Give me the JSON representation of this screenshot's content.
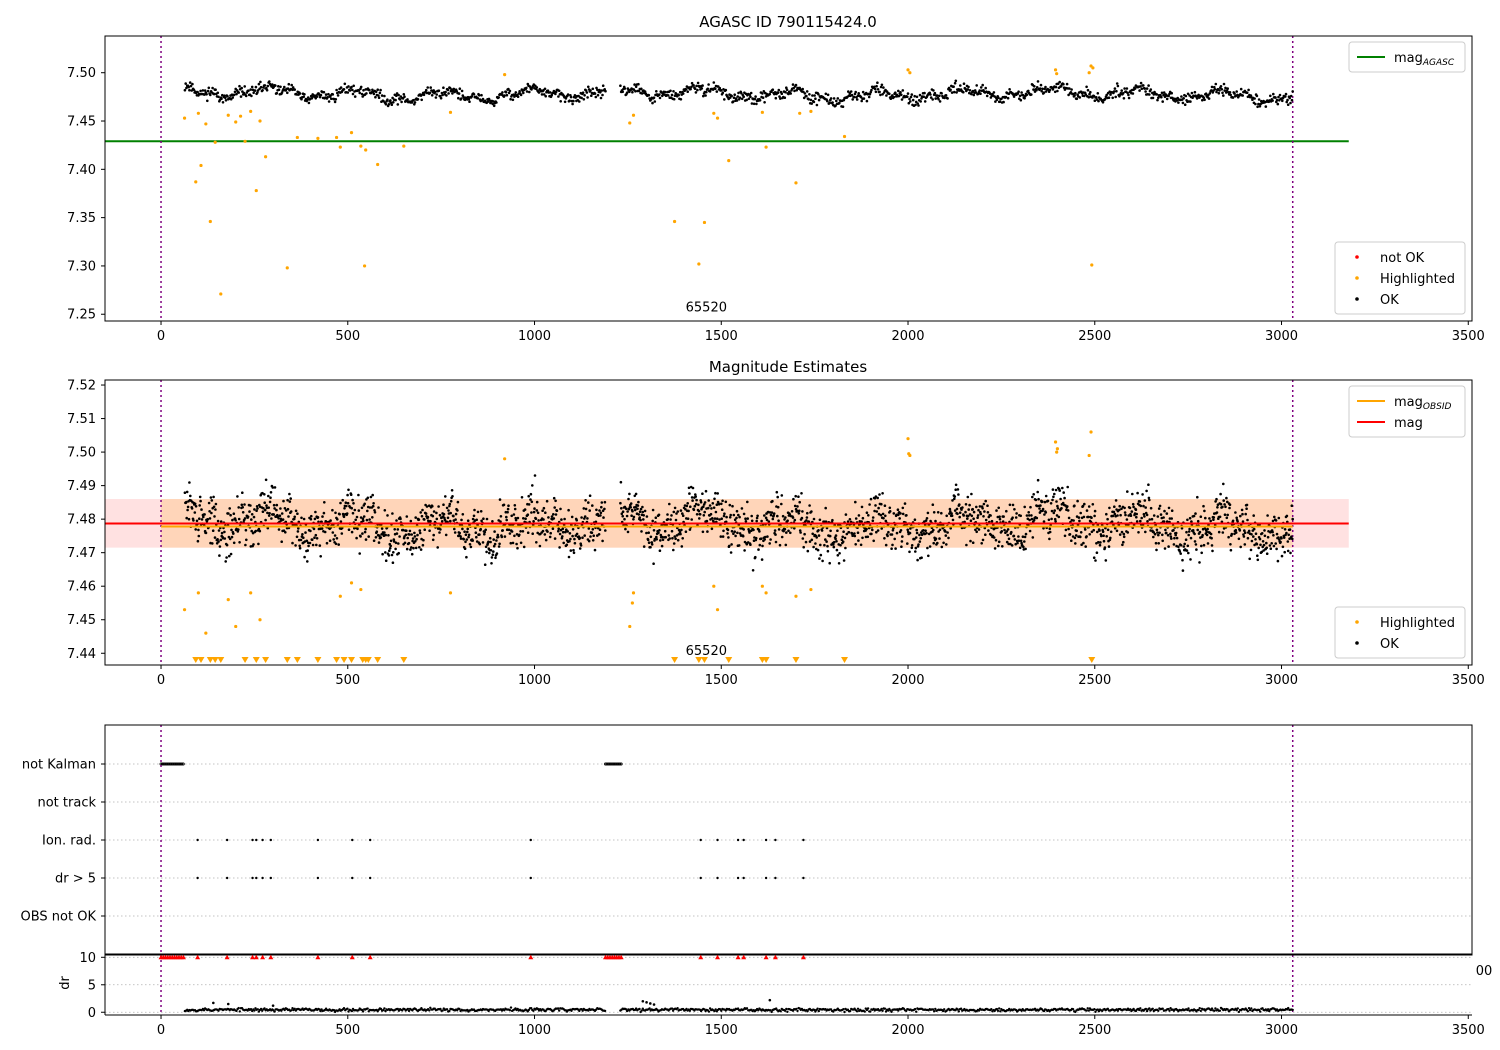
{
  "figure": {
    "title": "AGASC ID 790115424.0"
  },
  "colors": {
    "ok": "#000000",
    "highlighted": "#ffa500",
    "not_ok": "#ff0000",
    "agasc_line": "#008000",
    "obsid_line": "#ffa500",
    "mag_line": "#ff0000",
    "obs_band": "#ffcc99",
    "mag_band": "#ffaaaa",
    "obs_boundary": "#800080",
    "gridline": "#b0b0b0"
  },
  "chart_data": [
    {
      "id": "top",
      "type": "scatter",
      "title": "AGASC ID 790115424.0",
      "xlim": [
        -150,
        3510
      ],
      "ylim": [
        7.243,
        7.538
      ],
      "xticks": [
        0,
        500,
        1000,
        1500,
        2000,
        2500,
        3000,
        3500
      ],
      "yticks": [
        7.25,
        7.3,
        7.35,
        7.4,
        7.45,
        7.5
      ],
      "ytick_labels": [
        "7.25",
        "7.30",
        "7.35",
        "7.40",
        "7.45",
        "7.50"
      ],
      "obsid_label": "65520",
      "obsid_label_pos": [
        1460,
        7.253
      ],
      "obs_boundaries": [
        0,
        3030
      ],
      "hlines": [
        {
          "name": "mag_AGASC",
          "y": 7.429,
          "x": [
            -150,
            3180
          ],
          "color": "#008000"
        }
      ],
      "ok_series": {
        "name": "OK",
        "segments": [
          [
            64,
            1190
          ],
          [
            1230,
            3030
          ]
        ],
        "baseline": 7.478,
        "wiggle": 0.009,
        "noise": 0.005,
        "step": 2.0
      },
      "highlighted_points": [
        [
          63,
          7.453
        ],
        [
          93,
          7.387
        ],
        [
          100,
          7.458
        ],
        [
          107,
          7.404
        ],
        [
          120,
          7.447
        ],
        [
          132,
          7.346
        ],
        [
          145,
          7.428
        ],
        [
          160,
          7.271
        ],
        [
          180,
          7.456
        ],
        [
          200,
          7.449
        ],
        [
          213,
          7.455
        ],
        [
          225,
          7.429
        ],
        [
          240,
          7.46
        ],
        [
          255,
          7.378
        ],
        [
          265,
          7.45
        ],
        [
          280,
          7.413
        ],
        [
          338,
          7.298
        ],
        [
          365,
          7.433
        ],
        [
          420,
          7.432
        ],
        [
          470,
          7.433
        ],
        [
          480,
          7.423
        ],
        [
          510,
          7.438
        ],
        [
          535,
          7.424
        ],
        [
          545,
          7.3
        ],
        [
          548,
          7.42
        ],
        [
          580,
          7.405
        ],
        [
          650,
          7.424
        ],
        [
          775,
          7.459
        ],
        [
          920,
          7.498
        ],
        [
          1255,
          7.448
        ],
        [
          1265,
          7.456
        ],
        [
          1375,
          7.346
        ],
        [
          1440,
          7.302
        ],
        [
          1455,
          7.345
        ],
        [
          1480,
          7.458
        ],
        [
          1490,
          7.453
        ],
        [
          1520,
          7.409
        ],
        [
          1610,
          7.459
        ],
        [
          1620,
          7.423
        ],
        [
          1700,
          7.386
        ],
        [
          1710,
          7.458
        ],
        [
          1740,
          7.46
        ],
        [
          1830,
          7.434
        ],
        [
          2000,
          7.503
        ],
        [
          2005,
          7.5
        ],
        [
          2395,
          7.503
        ],
        [
          2398,
          7.499
        ],
        [
          2485,
          7.5
        ],
        [
          2490,
          7.507
        ],
        [
          2492,
          7.301
        ],
        [
          2495,
          7.505
        ]
      ],
      "legends": [
        {
          "position": "top-right",
          "entries": [
            {
              "label": "mag",
              "sub": "AGASC",
              "kind": "line",
              "color": "#008000"
            }
          ]
        },
        {
          "position": "bottom-right",
          "entries": [
            {
              "label": "not OK",
              "kind": "dot",
              "color": "#ff0000"
            },
            {
              "label": "Highlighted",
              "kind": "dot",
              "color": "#ffa500"
            },
            {
              "label": "OK",
              "kind": "dot",
              "color": "#000000"
            }
          ]
        }
      ]
    },
    {
      "id": "middle",
      "type": "scatter",
      "title": "Magnitude Estimates",
      "xlim": [
        -150,
        3510
      ],
      "ylim": [
        7.4365,
        7.5215
      ],
      "xticks": [
        0,
        500,
        1000,
        1500,
        2000,
        2500,
        3000,
        3500
      ],
      "yticks": [
        7.44,
        7.45,
        7.46,
        7.47,
        7.48,
        7.49,
        7.5,
        7.51,
        7.52
      ],
      "ytick_labels": [
        "7.44",
        "7.45",
        "7.46",
        "7.47",
        "7.48",
        "7.49",
        "7.50",
        "7.51",
        "7.52"
      ],
      "obsid_label": "65520",
      "obsid_label_pos": [
        1460,
        7.4395
      ],
      "obs_boundaries": [
        0,
        3030
      ],
      "bands": [
        {
          "name": "mag range",
          "y": [
            7.4715,
            7.486
          ],
          "x": [
            -150,
            3180
          ],
          "color": "#ffaaaa",
          "opacity": 0.35
        },
        {
          "name": "mag_OBSID range",
          "y": [
            7.4715,
            7.486
          ],
          "x": [
            0,
            3030
          ],
          "color": "#ffcc99",
          "opacity": 0.55
        }
      ],
      "hlines": [
        {
          "name": "mag_OBSID",
          "y": 7.4778,
          "x": [
            0,
            3030
          ],
          "color": "#ffa500"
        },
        {
          "name": "mag",
          "y": 7.4787,
          "x": [
            -150,
            3180
          ],
          "color": "#ff0000"
        }
      ],
      "ok_series": {
        "name": "OK",
        "segments": [
          [
            64,
            1190
          ],
          [
            1230,
            3030
          ]
        ],
        "baseline": 7.4785,
        "wiggle": 0.006,
        "noise": 0.0065,
        "step": 1.2
      },
      "highlighted_points": [
        [
          63,
          7.453
        ],
        [
          100,
          7.458
        ],
        [
          120,
          7.446
        ],
        [
          180,
          7.456
        ],
        [
          200,
          7.448
        ],
        [
          240,
          7.458
        ],
        [
          265,
          7.45
        ],
        [
          480,
          7.457
        ],
        [
          510,
          7.461
        ],
        [
          535,
          7.459
        ],
        [
          775,
          7.458
        ],
        [
          920,
          7.498
        ],
        [
          1255,
          7.448
        ],
        [
          1262,
          7.455
        ],
        [
          1265,
          7.458
        ],
        [
          1480,
          7.46
        ],
        [
          1490,
          7.453
        ],
        [
          1610,
          7.46
        ],
        [
          1620,
          7.458
        ],
        [
          1700,
          7.457
        ],
        [
          1740,
          7.459
        ],
        [
          2000,
          7.504
        ],
        [
          2002,
          7.4995
        ],
        [
          2005,
          7.499
        ],
        [
          2395,
          7.503
        ],
        [
          2398,
          7.5
        ],
        [
          2400,
          7.501
        ],
        [
          2485,
          7.499
        ],
        [
          2490,
          7.506
        ]
      ],
      "clipped_markers": [
        93,
        107,
        132,
        145,
        160,
        225,
        255,
        280,
        338,
        365,
        420,
        470,
        490,
        510,
        540,
        548,
        555,
        580,
        650,
        1375,
        1440,
        1455,
        1520,
        1610,
        1620,
        1700,
        1830,
        2492
      ],
      "legends": [
        {
          "position": "top-right",
          "entries": [
            {
              "label": "mag",
              "sub": "OBSID",
              "kind": "line",
              "color": "#ffa500"
            },
            {
              "label": "mag",
              "kind": "line",
              "color": "#ff0000"
            }
          ]
        },
        {
          "position": "bottom-right",
          "entries": [
            {
              "label": "Highlighted",
              "kind": "dot",
              "color": "#ffa500"
            },
            {
              "label": "OK",
              "kind": "dot",
              "color": "#000000"
            }
          ]
        }
      ]
    },
    {
      "id": "flags",
      "type": "scatter",
      "xlim": [
        -150,
        3510
      ],
      "categories": [
        "not Kalman",
        "not track",
        "Ion. rad.",
        "dr > 5",
        "OBS not OK"
      ],
      "obs_boundaries": [
        0,
        3030
      ],
      "flags": {
        "not Kalman": {
          "ranges": [
            [
              0,
              60
            ],
            [
              1190,
              1235
            ]
          ],
          "points": []
        },
        "not track": {
          "ranges": [],
          "points": []
        },
        "Ion. rad.": {
          "ranges": [],
          "points": [
            98,
            177,
            245,
            255,
            272,
            294,
            420,
            512,
            560,
            990,
            1445,
            1490,
            1545,
            1560,
            1620,
            1645,
            1720
          ]
        },
        "dr > 5": {
          "ranges": [],
          "points": [
            98,
            177,
            245,
            255,
            272,
            294,
            420,
            512,
            560,
            990,
            1445,
            1490,
            1545,
            1560,
            1620,
            1645,
            1720
          ]
        },
        "OBS not OK": {
          "ranges": [],
          "points": []
        }
      }
    },
    {
      "id": "dr",
      "type": "scatter",
      "xlim": [
        -150,
        3510
      ],
      "ylim": [
        -0.5,
        10.6
      ],
      "ylabel": "dr",
      "xticks": [
        0,
        500,
        1000,
        1500,
        2000,
        2500,
        3000,
        3500
      ],
      "yticks": [
        0,
        5,
        10
      ],
      "ytick_labels": [
        "0",
        "5",
        "10"
      ],
      "stray_label": "00",
      "obs_boundaries": [
        0,
        3030
      ],
      "ok_series": {
        "segments": [
          [
            64,
            1190
          ],
          [
            1230,
            3030
          ]
        ],
        "baseline": 0.45,
        "noise": 0.25,
        "step": 3.0
      },
      "dr_spikes": [
        [
          1290,
          2.0
        ],
        [
          1300,
          1.8
        ],
        [
          1310,
          1.6
        ],
        [
          1320,
          1.4
        ],
        [
          1630,
          2.2
        ],
        [
          140,
          1.7
        ],
        [
          180,
          1.5
        ],
        [
          300,
          1.2
        ]
      ],
      "clipped_markers": [
        0,
        6,
        12,
        18,
        24,
        30,
        36,
        42,
        48,
        54,
        60,
        98,
        177,
        245,
        255,
        272,
        294,
        420,
        512,
        560,
        990,
        1190,
        1196,
        1202,
        1208,
        1214,
        1220,
        1226,
        1232,
        1445,
        1490,
        1545,
        1560,
        1620,
        1645,
        1720
      ]
    }
  ]
}
